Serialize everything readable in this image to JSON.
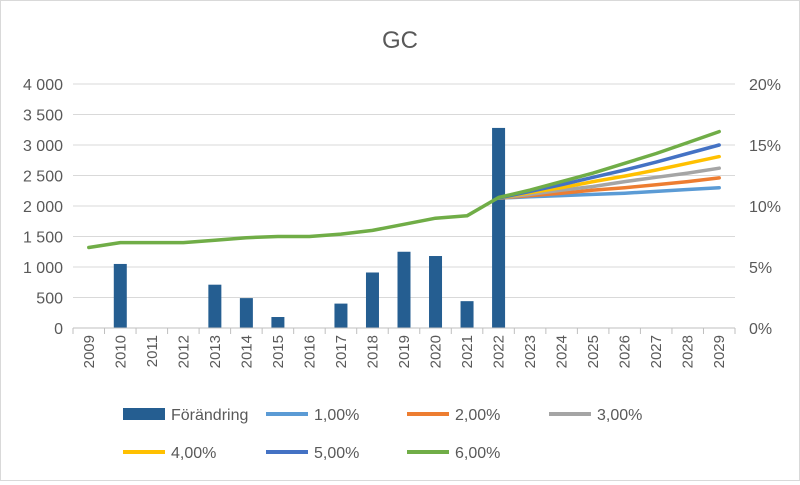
{
  "chart_data": {
    "type": "bar+line",
    "title": "GC",
    "xlabel": "",
    "ylabel": "",
    "categories": [
      "2009",
      "2010",
      "2011",
      "2012",
      "2013",
      "2014",
      "2015",
      "2016",
      "2017",
      "2018",
      "2019",
      "2020",
      "2021",
      "2022",
      "2023",
      "2024",
      "2025",
      "2026",
      "2027",
      "2028",
      "2029"
    ],
    "y_left": {
      "min": 0,
      "max": 4000,
      "ticks": [
        "0",
        "500",
        "1 000",
        "1 500",
        "2 000",
        "2 500",
        "3 000",
        "3 500",
        "4 000"
      ]
    },
    "y_right": {
      "min": 0,
      "max": 0.2,
      "ticks": [
        "0%",
        "5%",
        "10%",
        "15%",
        "20%"
      ]
    },
    "grid": true,
    "legend_position": "bottom",
    "bar_series": {
      "name": "Förändring",
      "color": "#255e91",
      "axis": "left",
      "values": [
        null,
        1050,
        null,
        null,
        710,
        490,
        180,
        null,
        400,
        910,
        1250,
        1180,
        440,
        3280,
        null,
        null,
        null,
        null,
        null,
        null,
        null
      ]
    },
    "line_series": [
      {
        "name": "1,00%",
        "color": "#5b9bd5",
        "axis": "left",
        "start": "2022",
        "values": [
          2130,
          2150,
          2170,
          2190,
          2210,
          2240,
          2270,
          2300
        ]
      },
      {
        "name": "2,00%",
        "color": "#ed7d31",
        "axis": "left",
        "start": "2022",
        "values": [
          2130,
          2170,
          2210,
          2260,
          2300,
          2350,
          2400,
          2460
        ]
      },
      {
        "name": "3,00%",
        "color": "#a5a5a5",
        "axis": "left",
        "start": "2022",
        "values": [
          2130,
          2190,
          2260,
          2320,
          2400,
          2470,
          2540,
          2620
        ]
      },
      {
        "name": "4,00%",
        "color": "#ffc000",
        "axis": "left",
        "start": "2022",
        "values": [
          2130,
          2220,
          2300,
          2400,
          2490,
          2590,
          2700,
          2810
        ]
      },
      {
        "name": "5,00%",
        "color": "#4472c4",
        "axis": "left",
        "start": "2022",
        "values": [
          2130,
          2240,
          2350,
          2470,
          2590,
          2720,
          2860,
          3000
        ]
      },
      {
        "name": "6,00%",
        "color": "#70ad47",
        "axis": "right",
        "start": "2009",
        "values": [
          0.066,
          0.07,
          0.07,
          0.07,
          0.072,
          0.074,
          0.075,
          0.075,
          0.077,
          0.08,
          0.085,
          0.09,
          0.092,
          0.107,
          0.113,
          0.12,
          0.127,
          0.135,
          0.143,
          0.152,
          0.161
        ]
      }
    ]
  }
}
